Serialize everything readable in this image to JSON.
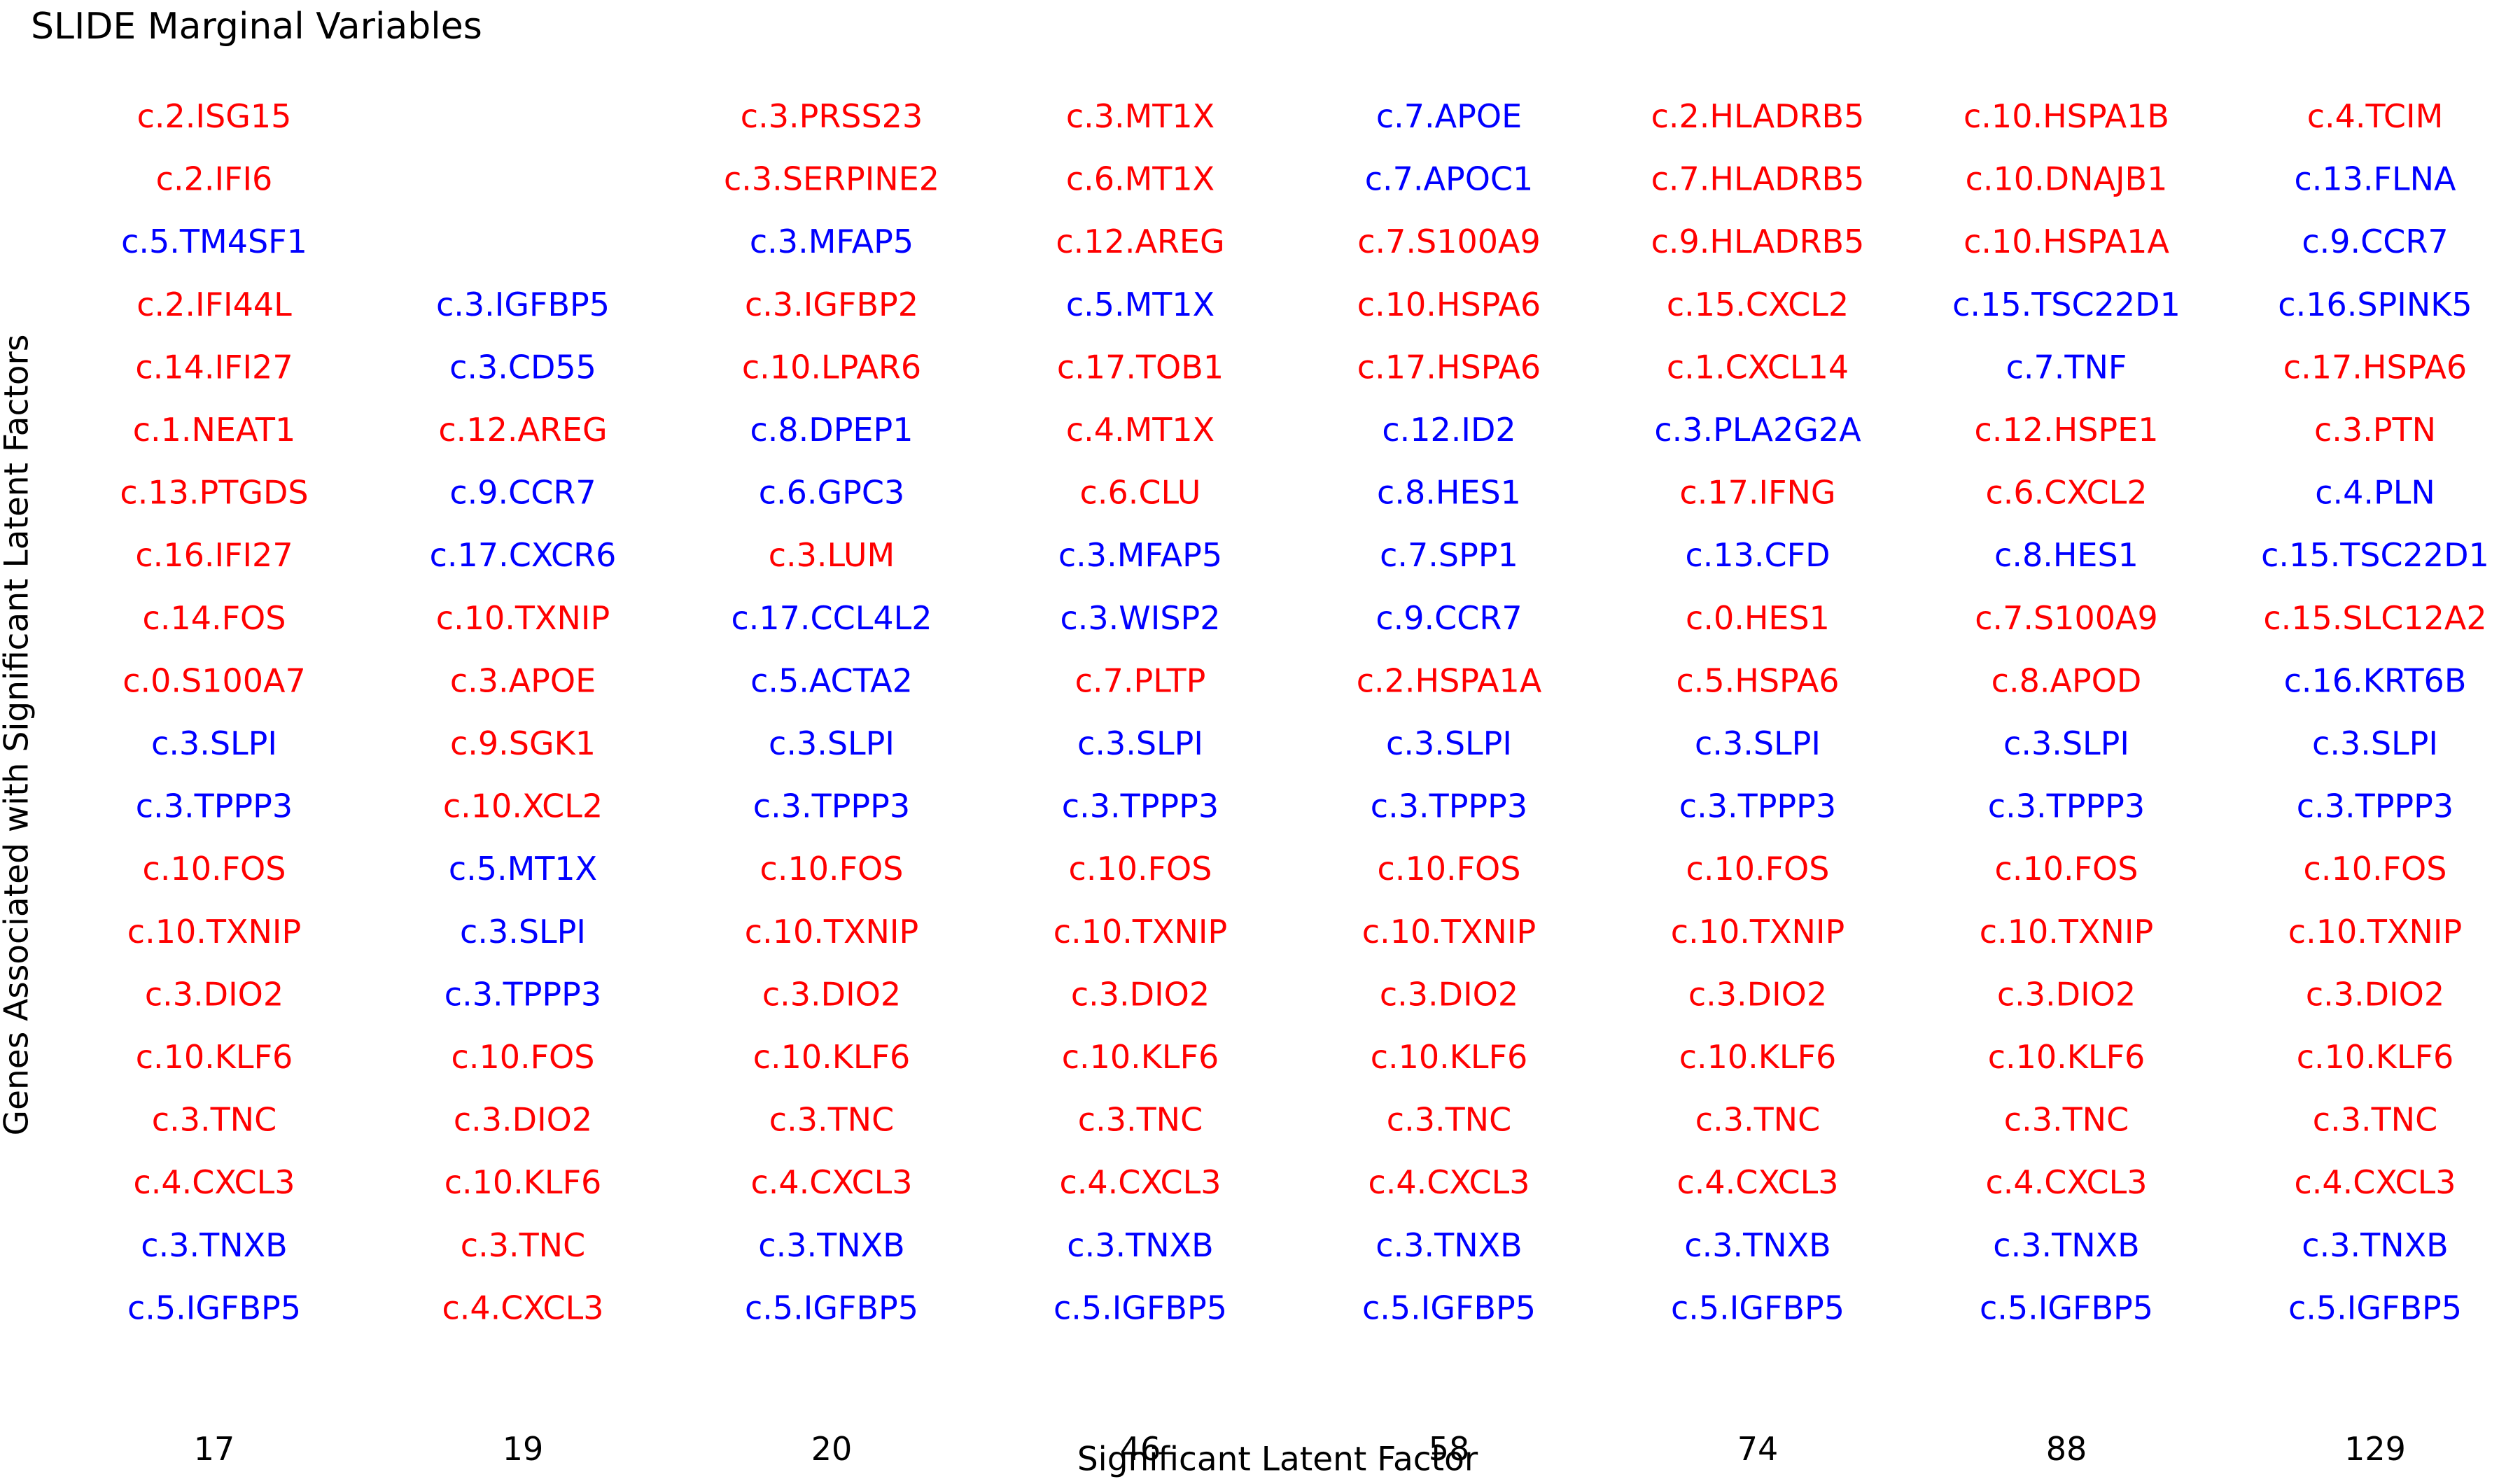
{
  "chart_data": {
    "type": "table",
    "title": "SLIDE Marginal Variables",
    "xlabel": "Significant Latent Factor",
    "ylabel": "Genes Associated with Significant Latent Factors",
    "legend": "none",
    "grid": false,
    "colors": {
      "red": "#ff0000",
      "blue": "#0000ff",
      "text": "#000000"
    },
    "columns": [
      {
        "factor": "17",
        "genes": [
          {
            "label": "c.2.ISG15",
            "color": "red"
          },
          {
            "label": "c.2.IFI6",
            "color": "red"
          },
          {
            "label": "c.5.TM4SF1",
            "color": "blue"
          },
          {
            "label": "c.2.IFI44L",
            "color": "red"
          },
          {
            "label": "c.14.IFI27",
            "color": "red"
          },
          {
            "label": "c.1.NEAT1",
            "color": "red"
          },
          {
            "label": "c.13.PTGDS",
            "color": "red"
          },
          {
            "label": "c.16.IFI27",
            "color": "red"
          },
          {
            "label": "c.14.FOS",
            "color": "red"
          },
          {
            "label": "c.0.S100A7",
            "color": "red"
          },
          {
            "label": "c.3.SLPI",
            "color": "blue"
          },
          {
            "label": "c.3.TPPP3",
            "color": "blue"
          },
          {
            "label": "c.10.FOS",
            "color": "red"
          },
          {
            "label": "c.10.TXNIP",
            "color": "red"
          },
          {
            "label": "c.3.DIO2",
            "color": "red"
          },
          {
            "label": "c.10.KLF6",
            "color": "red"
          },
          {
            "label": "c.3.TNC",
            "color": "red"
          },
          {
            "label": "c.4.CXCL3",
            "color": "red"
          },
          {
            "label": "c.3.TNXB",
            "color": "blue"
          },
          {
            "label": "c.5.IGFBP5",
            "color": "blue"
          }
        ]
      },
      {
        "factor": "19",
        "genes": [
          null,
          null,
          null,
          {
            "label": "c.3.IGFBP5",
            "color": "blue"
          },
          {
            "label": "c.3.CD55",
            "color": "blue"
          },
          {
            "label": "c.12.AREG",
            "color": "red"
          },
          {
            "label": "c.9.CCR7",
            "color": "blue"
          },
          {
            "label": "c.17.CXCR6",
            "color": "blue"
          },
          {
            "label": "c.10.TXNIP",
            "color": "red"
          },
          {
            "label": "c.3.APOE",
            "color": "red"
          },
          {
            "label": "c.9.SGK1",
            "color": "red"
          },
          {
            "label": "c.10.XCL2",
            "color": "red"
          },
          {
            "label": "c.5.MT1X",
            "color": "blue"
          },
          {
            "label": "c.3.SLPI",
            "color": "blue"
          },
          {
            "label": "c.3.TPPP3",
            "color": "blue"
          },
          {
            "label": "c.10.FOS",
            "color": "red"
          },
          {
            "label": "c.3.DIO2",
            "color": "red"
          },
          {
            "label": "c.10.KLF6",
            "color": "red"
          },
          {
            "label": "c.3.TNC",
            "color": "red"
          },
          {
            "label": "c.4.CXCL3",
            "color": "red"
          }
        ]
      },
      {
        "factor": "20",
        "genes": [
          {
            "label": "c.3.PRSS23",
            "color": "red"
          },
          {
            "label": "c.3.SERPINE2",
            "color": "red"
          },
          {
            "label": "c.3.MFAP5",
            "color": "blue"
          },
          {
            "label": "c.3.IGFBP2",
            "color": "red"
          },
          {
            "label": "c.10.LPAR6",
            "color": "red"
          },
          {
            "label": "c.8.DPEP1",
            "color": "blue"
          },
          {
            "label": "c.6.GPC3",
            "color": "blue"
          },
          {
            "label": "c.3.LUM",
            "color": "red"
          },
          {
            "label": "c.17.CCL4L2",
            "color": "blue"
          },
          {
            "label": "c.5.ACTA2",
            "color": "blue"
          },
          {
            "label": "c.3.SLPI",
            "color": "blue"
          },
          {
            "label": "c.3.TPPP3",
            "color": "blue"
          },
          {
            "label": "c.10.FOS",
            "color": "red"
          },
          {
            "label": "c.10.TXNIP",
            "color": "red"
          },
          {
            "label": "c.3.DIO2",
            "color": "red"
          },
          {
            "label": "c.10.KLF6",
            "color": "red"
          },
          {
            "label": "c.3.TNC",
            "color": "red"
          },
          {
            "label": "c.4.CXCL3",
            "color": "red"
          },
          {
            "label": "c.3.TNXB",
            "color": "blue"
          },
          {
            "label": "c.5.IGFBP5",
            "color": "blue"
          }
        ]
      },
      {
        "factor": "46",
        "genes": [
          {
            "label": "c.3.MT1X",
            "color": "red"
          },
          {
            "label": "c.6.MT1X",
            "color": "red"
          },
          {
            "label": "c.12.AREG",
            "color": "red"
          },
          {
            "label": "c.5.MT1X",
            "color": "blue"
          },
          {
            "label": "c.17.TOB1",
            "color": "red"
          },
          {
            "label": "c.4.MT1X",
            "color": "red"
          },
          {
            "label": "c.6.CLU",
            "color": "red"
          },
          {
            "label": "c.3.MFAP5",
            "color": "blue"
          },
          {
            "label": "c.3.WISP2",
            "color": "blue"
          },
          {
            "label": "c.7.PLTP",
            "color": "red"
          },
          {
            "label": "c.3.SLPI",
            "color": "blue"
          },
          {
            "label": "c.3.TPPP3",
            "color": "blue"
          },
          {
            "label": "c.10.FOS",
            "color": "red"
          },
          {
            "label": "c.10.TXNIP",
            "color": "red"
          },
          {
            "label": "c.3.DIO2",
            "color": "red"
          },
          {
            "label": "c.10.KLF6",
            "color": "red"
          },
          {
            "label": "c.3.TNC",
            "color": "red"
          },
          {
            "label": "c.4.CXCL3",
            "color": "red"
          },
          {
            "label": "c.3.TNXB",
            "color": "blue"
          },
          {
            "label": "c.5.IGFBP5",
            "color": "blue"
          }
        ]
      },
      {
        "factor": "58",
        "genes": [
          {
            "label": "c.7.APOE",
            "color": "blue"
          },
          {
            "label": "c.7.APOC1",
            "color": "blue"
          },
          {
            "label": "c.7.S100A9",
            "color": "red"
          },
          {
            "label": "c.10.HSPA6",
            "color": "red"
          },
          {
            "label": "c.17.HSPA6",
            "color": "red"
          },
          {
            "label": "c.12.ID2",
            "color": "blue"
          },
          {
            "label": "c.8.HES1",
            "color": "blue"
          },
          {
            "label": "c.7.SPP1",
            "color": "blue"
          },
          {
            "label": "c.9.CCR7",
            "color": "blue"
          },
          {
            "label": "c.2.HSPA1A",
            "color": "red"
          },
          {
            "label": "c.3.SLPI",
            "color": "blue"
          },
          {
            "label": "c.3.TPPP3",
            "color": "blue"
          },
          {
            "label": "c.10.FOS",
            "color": "red"
          },
          {
            "label": "c.10.TXNIP",
            "color": "red"
          },
          {
            "label": "c.3.DIO2",
            "color": "red"
          },
          {
            "label": "c.10.KLF6",
            "color": "red"
          },
          {
            "label": "c.3.TNC",
            "color": "red"
          },
          {
            "label": "c.4.CXCL3",
            "color": "red"
          },
          {
            "label": "c.3.TNXB",
            "color": "blue"
          },
          {
            "label": "c.5.IGFBP5",
            "color": "blue"
          }
        ]
      },
      {
        "factor": "74",
        "genes": [
          {
            "label": "c.2.HLADRB5",
            "color": "red"
          },
          {
            "label": "c.7.HLADRB5",
            "color": "red"
          },
          {
            "label": "c.9.HLADRB5",
            "color": "red"
          },
          {
            "label": "c.15.CXCL2",
            "color": "red"
          },
          {
            "label": "c.1.CXCL14",
            "color": "red"
          },
          {
            "label": "c.3.PLA2G2A",
            "color": "blue"
          },
          {
            "label": "c.17.IFNG",
            "color": "red"
          },
          {
            "label": "c.13.CFD",
            "color": "blue"
          },
          {
            "label": "c.0.HES1",
            "color": "red"
          },
          {
            "label": "c.5.HSPA6",
            "color": "red"
          },
          {
            "label": "c.3.SLPI",
            "color": "blue"
          },
          {
            "label": "c.3.TPPP3",
            "color": "blue"
          },
          {
            "label": "c.10.FOS",
            "color": "red"
          },
          {
            "label": "c.10.TXNIP",
            "color": "red"
          },
          {
            "label": "c.3.DIO2",
            "color": "red"
          },
          {
            "label": "c.10.KLF6",
            "color": "red"
          },
          {
            "label": "c.3.TNC",
            "color": "red"
          },
          {
            "label": "c.4.CXCL3",
            "color": "red"
          },
          {
            "label": "c.3.TNXB",
            "color": "blue"
          },
          {
            "label": "c.5.IGFBP5",
            "color": "blue"
          }
        ]
      },
      {
        "factor": "88",
        "genes": [
          {
            "label": "c.10.HSPA1B",
            "color": "red"
          },
          {
            "label": "c.10.DNAJB1",
            "color": "red"
          },
          {
            "label": "c.10.HSPA1A",
            "color": "red"
          },
          {
            "label": "c.15.TSC22D1",
            "color": "blue"
          },
          {
            "label": "c.7.TNF",
            "color": "blue"
          },
          {
            "label": "c.12.HSPE1",
            "color": "red"
          },
          {
            "label": "c.6.CXCL2",
            "color": "red"
          },
          {
            "label": "c.8.HES1",
            "color": "blue"
          },
          {
            "label": "c.7.S100A9",
            "color": "red"
          },
          {
            "label": "c.8.APOD",
            "color": "red"
          },
          {
            "label": "c.3.SLPI",
            "color": "blue"
          },
          {
            "label": "c.3.TPPP3",
            "color": "blue"
          },
          {
            "label": "c.10.FOS",
            "color": "red"
          },
          {
            "label": "c.10.TXNIP",
            "color": "red"
          },
          {
            "label": "c.3.DIO2",
            "color": "red"
          },
          {
            "label": "c.10.KLF6",
            "color": "red"
          },
          {
            "label": "c.3.TNC",
            "color": "red"
          },
          {
            "label": "c.4.CXCL3",
            "color": "red"
          },
          {
            "label": "c.3.TNXB",
            "color": "blue"
          },
          {
            "label": "c.5.IGFBP5",
            "color": "blue"
          }
        ]
      },
      {
        "factor": "129",
        "genes": [
          {
            "label": "c.4.TCIM",
            "color": "red"
          },
          {
            "label": "c.13.FLNA",
            "color": "blue"
          },
          {
            "label": "c.9.CCR7",
            "color": "blue"
          },
          {
            "label": "c.16.SPINK5",
            "color": "blue"
          },
          {
            "label": "c.17.HSPA6",
            "color": "red"
          },
          {
            "label": "c.3.PTN",
            "color": "red"
          },
          {
            "label": "c.4.PLN",
            "color": "blue"
          },
          {
            "label": "c.15.TSC22D1",
            "color": "blue"
          },
          {
            "label": "c.15.SLC12A2",
            "color": "red"
          },
          {
            "label": "c.16.KRT6B",
            "color": "blue"
          },
          {
            "label": "c.3.SLPI",
            "color": "blue"
          },
          {
            "label": "c.3.TPPP3",
            "color": "blue"
          },
          {
            "label": "c.10.FOS",
            "color": "red"
          },
          {
            "label": "c.10.TXNIP",
            "color": "red"
          },
          {
            "label": "c.3.DIO2",
            "color": "red"
          },
          {
            "label": "c.10.KLF6",
            "color": "red"
          },
          {
            "label": "c.3.TNC",
            "color": "red"
          },
          {
            "label": "c.4.CXCL3",
            "color": "red"
          },
          {
            "label": "c.3.TNXB",
            "color": "blue"
          },
          {
            "label": "c.5.IGFBP5",
            "color": "blue"
          }
        ]
      }
    ]
  }
}
